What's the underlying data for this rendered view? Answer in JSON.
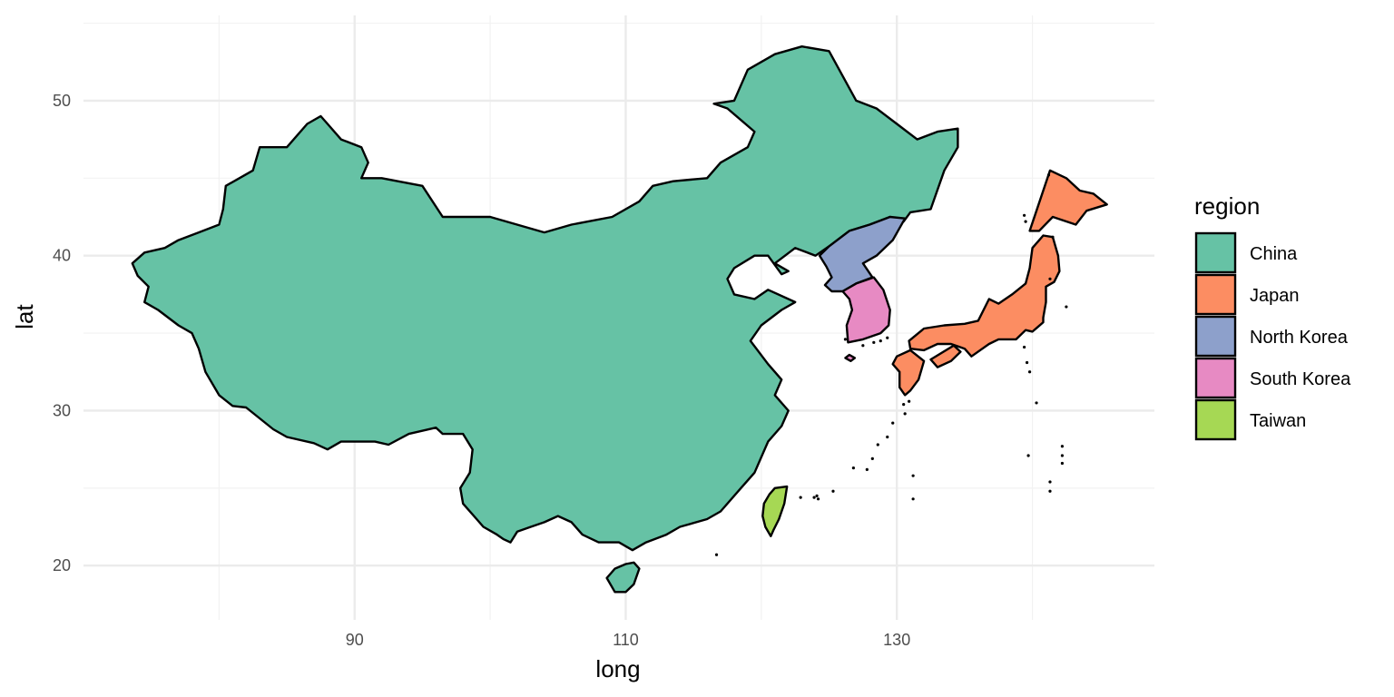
{
  "chart_data": {
    "type": "map",
    "xlabel": "long",
    "ylabel": "lat",
    "x_ticks": [
      90,
      110,
      130
    ],
    "y_ticks": [
      20,
      30,
      40,
      50
    ],
    "xlim": [
      70,
      149
    ],
    "ylim": [
      16.5,
      55.5
    ],
    "grid": true,
    "legend": {
      "title": "region",
      "placement": "right",
      "entries": [
        {
          "name": "China",
          "color": "#66c2a5"
        },
        {
          "name": "Japan",
          "color": "#fc8d62"
        },
        {
          "name": "North Korea",
          "color": "#8da0cb"
        },
        {
          "name": "South Korea",
          "color": "#e78ac3"
        },
        {
          "name": "Taiwan",
          "color": "#a6d854"
        }
      ]
    },
    "regions": [
      {
        "name": "China",
        "color": "#66c2a5",
        "polygons": [
          [
            [
              73.6,
              39.5
            ],
            [
              74.5,
              40.2
            ],
            [
              76,
              40.5
            ],
            [
              77,
              41
            ],
            [
              78.5,
              41.5
            ],
            [
              80,
              42
            ],
            [
              80.3,
              43
            ],
            [
              80.5,
              44.5
            ],
            [
              81.5,
              45
            ],
            [
              82.5,
              45.5
            ],
            [
              83,
              47
            ],
            [
              85,
              47
            ],
            [
              86.5,
              48.5
            ],
            [
              87.5,
              49
            ],
            [
              88,
              48.5
            ],
            [
              89,
              47.5
            ],
            [
              90.5,
              47
            ],
            [
              91,
              46
            ],
            [
              90.5,
              45
            ],
            [
              92,
              45
            ],
            [
              95,
              44.5
            ],
            [
              96.5,
              42.5
            ],
            [
              100,
              42.5
            ],
            [
              104,
              41.5
            ],
            [
              106,
              42
            ],
            [
              109,
              42.5
            ],
            [
              111,
              43.5
            ],
            [
              112,
              44.5
            ],
            [
              113.5,
              44.8
            ],
            [
              116,
              45
            ],
            [
              117,
              46
            ],
            [
              119,
              47
            ],
            [
              119.5,
              48
            ],
            [
              117.5,
              49.5
            ],
            [
              116.5,
              49.8
            ],
            [
              118,
              50
            ],
            [
              119,
              52
            ],
            [
              121,
              53
            ],
            [
              123,
              53.5
            ],
            [
              125,
              53.2
            ],
            [
              127,
              50
            ],
            [
              128.5,
              49.5
            ],
            [
              130,
              48.5
            ],
            [
              131.5,
              47.5
            ],
            [
              133,
              48
            ],
            [
              134.5,
              48.2
            ],
            [
              134.5,
              47
            ],
            [
              133.5,
              45.5
            ],
            [
              132.5,
              43
            ],
            [
              131,
              42.8
            ],
            [
              130.5,
              42.2
            ],
            [
              129.5,
              42.5
            ],
            [
              128,
              42
            ],
            [
              126.5,
              41.6
            ],
            [
              125,
              40.6
            ],
            [
              124,
              40
            ],
            [
              122.5,
              40.5
            ],
            [
              121,
              39.5
            ],
            [
              122,
              39
            ],
            [
              121.5,
              38.8
            ],
            [
              120.5,
              40
            ],
            [
              119.5,
              40
            ],
            [
              118,
              39.2
            ],
            [
              117.5,
              38.5
            ],
            [
              118,
              37.5
            ],
            [
              119.5,
              37.2
            ],
            [
              120.5,
              37.8
            ],
            [
              122.5,
              37
            ],
            [
              121.5,
              36.5
            ],
            [
              120,
              35.5
            ],
            [
              119.2,
              34.5
            ],
            [
              120.5,
              33
            ],
            [
              121.5,
              32
            ],
            [
              121,
              31
            ],
            [
              122,
              30
            ],
            [
              121.5,
              29
            ],
            [
              120.5,
              28
            ],
            [
              119.5,
              26
            ],
            [
              118.5,
              25
            ],
            [
              117,
              23.5
            ],
            [
              116,
              23
            ],
            [
              114,
              22.5
            ],
            [
              113,
              22
            ],
            [
              111.5,
              21.5
            ],
            [
              110.5,
              21
            ],
            [
              109.5,
              21.5
            ],
            [
              108,
              21.5
            ],
            [
              106.8,
              22
            ],
            [
              106,
              22.8
            ],
            [
              105,
              23.2
            ],
            [
              104,
              22.8
            ],
            [
              103,
              22.5
            ],
            [
              102,
              22.2
            ],
            [
              101.5,
              21.5
            ],
            [
              101,
              21.7
            ],
            [
              100.5,
              22
            ],
            [
              99.5,
              22.5
            ],
            [
              99,
              23
            ],
            [
              98,
              24
            ],
            [
              97.8,
              25
            ],
            [
              98.5,
              26
            ],
            [
              98.7,
              27.5
            ],
            [
              98,
              28.5
            ],
            [
              96.5,
              28.5
            ],
            [
              96,
              28.9
            ],
            [
              94,
              28.5
            ],
            [
              92.5,
              27.8
            ],
            [
              91.5,
              28
            ],
            [
              89,
              28
            ],
            [
              88,
              27.5
            ],
            [
              87,
              27.9
            ],
            [
              85,
              28.3
            ],
            [
              84,
              28.8
            ],
            [
              82,
              30.2
            ],
            [
              81,
              30.3
            ],
            [
              80,
              31
            ],
            [
              79,
              32.5
            ],
            [
              78.5,
              34
            ],
            [
              78,
              35
            ],
            [
              77,
              35.5
            ],
            [
              75.5,
              36.5
            ],
            [
              74.5,
              37
            ],
            [
              74.8,
              38
            ],
            [
              74,
              38.7
            ]
          ],
          [
            [
              108.6,
              19.2
            ],
            [
              109.2,
              18.3
            ],
            [
              110,
              18.3
            ],
            [
              110.6,
              18.8
            ],
            [
              111,
              19.8
            ],
            [
              110.6,
              20.2
            ],
            [
              110,
              20.1
            ],
            [
              109.2,
              19.8
            ]
          ]
        ]
      },
      {
        "name": "Japan",
        "color": "#fc8d62",
        "polygons": [
          [
            [
              139.8,
              41.6
            ],
            [
              141.3,
              45.5
            ],
            [
              142.5,
              45
            ],
            [
              143.5,
              44.2
            ],
            [
              144.5,
              44
            ],
            [
              145.5,
              43.3
            ],
            [
              144,
              42.9
            ],
            [
              143.2,
              42
            ],
            [
              141.5,
              42.5
            ],
            [
              140.5,
              41.6
            ]
          ],
          [
            [
              140,
              40.5
            ],
            [
              140.8,
              41.3
            ],
            [
              141.5,
              41.2
            ],
            [
              141.9,
              40
            ],
            [
              142,
              39
            ],
            [
              141.6,
              38.3
            ],
            [
              141,
              38
            ],
            [
              141,
              37
            ],
            [
              140.8,
              36
            ],
            [
              140.8,
              35.7
            ],
            [
              140,
              35.1
            ],
            [
              139.5,
              35.2
            ],
            [
              138.8,
              34.6
            ],
            [
              137.5,
              34.6
            ],
            [
              136.8,
              34.3
            ],
            [
              135.5,
              33.5
            ],
            [
              135,
              34
            ],
            [
              134,
              34.3
            ],
            [
              133,
              34.3
            ],
            [
              132,
              33.9
            ],
            [
              131,
              34
            ],
            [
              130.9,
              34.5
            ],
            [
              132,
              35.3
            ],
            [
              133.5,
              35.5
            ],
            [
              135,
              35.6
            ],
            [
              136,
              35.8
            ],
            [
              136.8,
              37.2
            ],
            [
              137.5,
              36.9
            ],
            [
              138.5,
              37.5
            ],
            [
              139.5,
              38.2
            ],
            [
              139.8,
              39.2
            ]
          ],
          [
            [
              130,
              33.5
            ],
            [
              131,
              33.9
            ],
            [
              132,
              33.2
            ],
            [
              131.6,
              32
            ],
            [
              131,
              31.3
            ],
            [
              130.6,
              31
            ],
            [
              130.2,
              31.5
            ],
            [
              130.2,
              32.5
            ],
            [
              129.7,
              33
            ]
          ],
          [
            [
              132.5,
              33.3
            ],
            [
              134.2,
              34.2
            ],
            [
              134.7,
              33.8
            ],
            [
              134,
              33.2
            ],
            [
              133,
              32.8
            ]
          ]
        ]
      },
      {
        "name": "North Korea",
        "color": "#8da0cb",
        "polygons": [
          [
            [
              124.3,
              40
            ],
            [
              125,
              40.6
            ],
            [
              126.5,
              41.6
            ],
            [
              128,
              42
            ],
            [
              129.5,
              42.5
            ],
            [
              130.6,
              42.4
            ],
            [
              129.7,
              41
            ],
            [
              128.5,
              40
            ],
            [
              127.5,
              39.5
            ],
            [
              128.2,
              38.6
            ],
            [
              127,
              38.2
            ],
            [
              126,
              37.7
            ],
            [
              125.2,
              37.7
            ],
            [
              124.7,
              38.1
            ],
            [
              125.2,
              38.6
            ],
            [
              124.8,
              39.3
            ]
          ]
        ]
      },
      {
        "name": "South Korea",
        "color": "#e78ac3",
        "polygons": [
          [
            [
              126,
              37.7
            ],
            [
              127,
              38.2
            ],
            [
              128.3,
              38.6
            ],
            [
              129,
              37.8
            ],
            [
              129.5,
              36.5
            ],
            [
              129.4,
              35.5
            ],
            [
              128.8,
              35
            ],
            [
              127.5,
              34.6
            ],
            [
              126.4,
              34.4
            ],
            [
              126.3,
              35.5
            ],
            [
              126.7,
              36.5
            ],
            [
              126.5,
              37.2
            ]
          ],
          [
            [
              126.2,
              33.4
            ],
            [
              126.5,
              33.6
            ],
            [
              126.9,
              33.4
            ],
            [
              126.6,
              33.2
            ]
          ]
        ]
      },
      {
        "name": "Taiwan",
        "color": "#a6d854",
        "polygons": [
          [
            [
              121,
              25
            ],
            [
              121.9,
              25.1
            ],
            [
              121.7,
              24
            ],
            [
              121.3,
              23
            ],
            [
              120.9,
              22.3
            ],
            [
              120.7,
              21.9
            ],
            [
              120.3,
              22.5
            ],
            [
              120.1,
              23.2
            ],
            [
              120.2,
              24
            ],
            [
              120.6,
              24.6
            ]
          ]
        ]
      }
    ],
    "islands": [
      [
        128.6,
        27.8
      ],
      [
        128.2,
        26.9
      ],
      [
        129.3,
        28.3
      ],
      [
        127.8,
        26.2
      ],
      [
        126.8,
        26.3
      ],
      [
        125.3,
        24.8
      ],
      [
        124.2,
        24.3
      ],
      [
        123.9,
        24.4
      ],
      [
        122.9,
        24.4
      ],
      [
        124.1,
        24.5
      ],
      [
        130.5,
        30.4
      ],
      [
        130.6,
        29.8
      ],
      [
        129.7,
        29.2
      ],
      [
        130.9,
        30.6
      ],
      [
        139.4,
        34.1
      ],
      [
        139.6,
        33.1
      ],
      [
        139.8,
        32.5
      ],
      [
        140.3,
        30.5
      ],
      [
        139.7,
        27.1
      ],
      [
        142.2,
        27.7
      ],
      [
        142.2,
        27.1
      ],
      [
        142.2,
        26.6
      ],
      [
        141.3,
        25.4
      ],
      [
        141.3,
        24.8
      ],
      [
        131.2,
        25.8
      ],
      [
        131.2,
        24.3
      ],
      [
        116.7,
        20.7
      ],
      [
        129.3,
        34.7
      ],
      [
        128.8,
        34.5
      ],
      [
        128.3,
        34.4
      ],
      [
        127.5,
        34.2
      ],
      [
        126.2,
        34.6
      ],
      [
        141.3,
        38.5
      ],
      [
        141.5,
        41.2
      ],
      [
        139.5,
        42.2
      ],
      [
        139.4,
        42.6
      ],
      [
        141.2,
        45.2
      ],
      [
        142.5,
        36.7
      ]
    ]
  }
}
